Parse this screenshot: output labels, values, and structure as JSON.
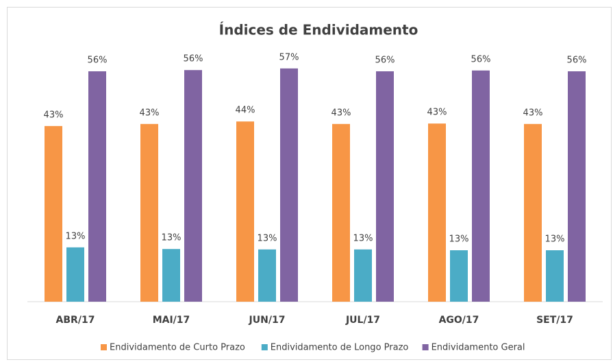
{
  "chart_data": {
    "type": "bar",
    "title": "Índices de Endividamento",
    "categories": [
      "ABR/17",
      "MAI/17",
      "JUN/17",
      "JUL/17",
      "AGO/17",
      "SET/17"
    ],
    "series": [
      {
        "name": "Endividamento de Curto Prazo",
        "color": "#F79646",
        "values": [
          42.7,
          43.2,
          43.8,
          43.2,
          43.3,
          43.2
        ],
        "value_labels": [
          "43%",
          "43%",
          "44%",
          "43%",
          "43%",
          "43%"
        ]
      },
      {
        "name": "Endividamento de Longo Prazo",
        "color": "#4BACC6",
        "values": [
          13.2,
          12.8,
          12.7,
          12.7,
          12.5,
          12.5
        ],
        "value_labels": [
          "13%",
          "13%",
          "13%",
          "13%",
          "13%",
          "13%"
        ]
      },
      {
        "name": "Endividamento Geral",
        "color": "#8064A2",
        "values": [
          56.0,
          56.3,
          56.7,
          56.0,
          56.2,
          56.0
        ],
        "value_labels": [
          "56%",
          "56%",
          "57%",
          "56%",
          "56%",
          "56%"
        ]
      }
    ],
    "ylim": [
      0,
      60
    ],
    "legend": "bottom"
  }
}
